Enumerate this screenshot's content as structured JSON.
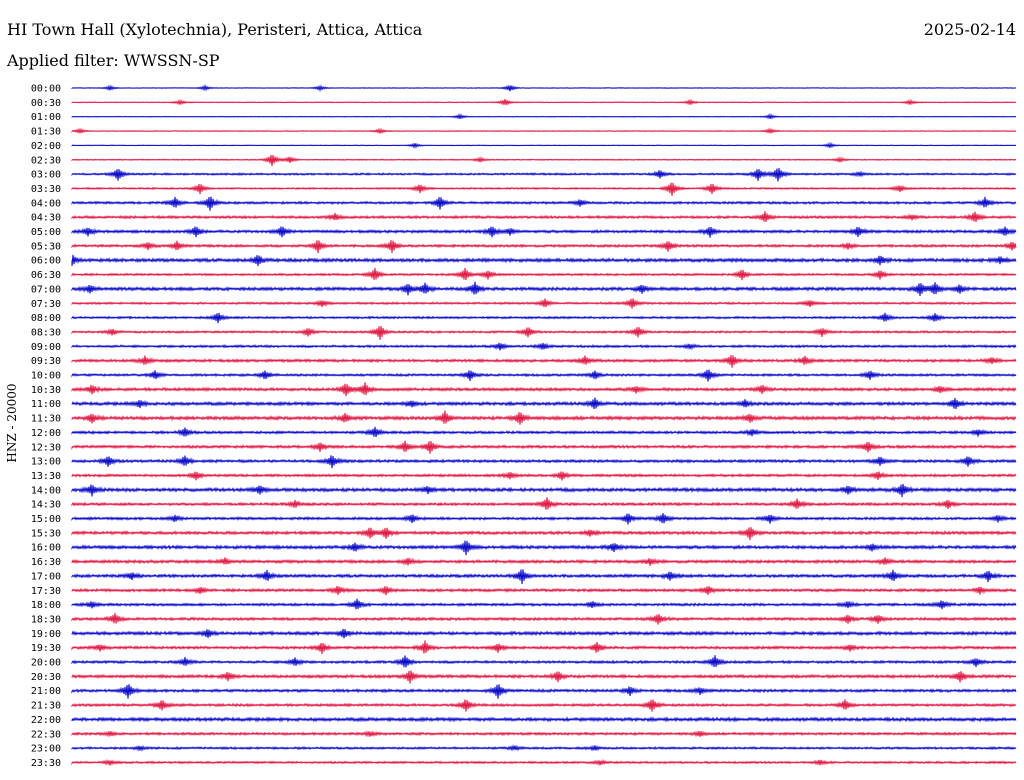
{
  "header": {
    "station": "HI Town Hall (Xylotechnia), Peristeri, Attica, Attica",
    "date": "2025-02-14",
    "filter": "Applied filter: WWSSN-SP"
  },
  "chart_data": {
    "type": "line",
    "title": "HI Town Hall (Xylotechnia), Peristeri, Attica, Attica",
    "ylabel": "HNZ - 20000",
    "row_labels": [
      "00:00",
      "00:30",
      "01:00",
      "01:30",
      "02:00",
      "02:30",
      "03:00",
      "03:30",
      "04:00",
      "04:30",
      "05:00",
      "05:30",
      "06:00",
      "06:30",
      "07:00",
      "07:30",
      "08:00",
      "08:30",
      "09:00",
      "09:30",
      "10:00",
      "10:30",
      "11:00",
      "11:30",
      "12:00",
      "12:30",
      "13:00",
      "13:30",
      "14:00",
      "14:30",
      "15:00",
      "15:30",
      "16:00",
      "16:30",
      "17:00",
      "17:30",
      "18:00",
      "18:30",
      "19:00",
      "19:30",
      "20:00",
      "20:30",
      "21:00",
      "21:30",
      "22:00",
      "22:30",
      "23:00",
      "23:30"
    ],
    "colors": [
      "#0000c8",
      "#e0103c"
    ],
    "noise": [
      0.3,
      0.4,
      0.3,
      0.4,
      0.3,
      0.5,
      0.9,
      0.8,
      1.1,
      1.2,
      1.3,
      1.2,
      1.6,
      1.0,
      1.5,
      1.0,
      1.0,
      1.0,
      1.1,
      1.3,
      1.1,
      1.4,
      1.5,
      1.6,
      1.2,
      1.3,
      1.3,
      1.2,
      1.6,
      1.3,
      1.2,
      1.4,
      1.5,
      1.4,
      1.4,
      1.3,
      1.2,
      1.3,
      1.5,
      1.3,
      1.2,
      1.4,
      1.3,
      1.2,
      1.6,
      1.2,
      1.0,
      1.0
    ],
    "bursts": [
      [
        [
          110,
          2
        ],
        [
          205,
          2
        ],
        [
          320,
          2
        ],
        [
          510,
          3
        ]
      ],
      [
        [
          180,
          2
        ],
        [
          505,
          3
        ],
        [
          690,
          2
        ],
        [
          910,
          2
        ]
      ],
      [
        [
          460,
          2
        ],
        [
          770,
          2
        ]
      ],
      [
        [
          80,
          2
        ],
        [
          380,
          2
        ],
        [
          770,
          2
        ]
      ],
      [
        [
          415,
          2
        ],
        [
          830,
          2
        ]
      ],
      [
        [
          272,
          6
        ],
        [
          290,
          3
        ],
        [
          480,
          2
        ],
        [
          840,
          2
        ]
      ],
      [
        [
          118,
          6
        ],
        [
          660,
          4
        ],
        [
          758,
          6
        ],
        [
          778,
          7
        ],
        [
          860,
          2
        ]
      ],
      [
        [
          200,
          5
        ],
        [
          420,
          4
        ],
        [
          672,
          7
        ],
        [
          712,
          5
        ],
        [
          900,
          3
        ]
      ],
      [
        [
          175,
          5
        ],
        [
          210,
          7
        ],
        [
          440,
          6
        ],
        [
          580,
          3
        ],
        [
          985,
          5
        ]
      ],
      [
        [
          335,
          3
        ],
        [
          765,
          5
        ],
        [
          912,
          2
        ],
        [
          975,
          5
        ]
      ],
      [
        [
          88,
          4
        ],
        [
          196,
          5
        ],
        [
          282,
          5
        ],
        [
          492,
          5
        ],
        [
          510,
          3
        ],
        [
          710,
          5
        ],
        [
          858,
          5
        ],
        [
          1005,
          4
        ]
      ],
      [
        [
          148,
          3
        ],
        [
          177,
          4
        ],
        [
          318,
          6
        ],
        [
          392,
          6
        ],
        [
          668,
          5
        ],
        [
          848,
          3
        ],
        [
          1012,
          4
        ]
      ],
      [
        [
          72,
          5
        ],
        [
          258,
          5
        ],
        [
          880,
          4
        ],
        [
          1000,
          3
        ]
      ],
      [
        [
          375,
          6
        ],
        [
          465,
          6
        ],
        [
          488,
          4
        ],
        [
          742,
          5
        ],
        [
          880,
          4
        ]
      ],
      [
        [
          90,
          4
        ],
        [
          408,
          5
        ],
        [
          425,
          5
        ],
        [
          475,
          6
        ],
        [
          642,
          4
        ],
        [
          920,
          6
        ],
        [
          935,
          6
        ],
        [
          960,
          4
        ]
      ],
      [
        [
          322,
          3
        ],
        [
          545,
          4
        ],
        [
          632,
          5
        ],
        [
          810,
          3
        ]
      ],
      [
        [
          218,
          5
        ],
        [
          885,
          4
        ],
        [
          935,
          4
        ]
      ],
      [
        [
          112,
          3
        ],
        [
          308,
          4
        ],
        [
          380,
          7
        ],
        [
          528,
          5
        ],
        [
          638,
          5
        ],
        [
          822,
          4
        ]
      ],
      [
        [
          500,
          3
        ],
        [
          543,
          3
        ],
        [
          690,
          2
        ]
      ],
      [
        [
          145,
          4
        ],
        [
          585,
          4
        ],
        [
          732,
          6
        ],
        [
          805,
          4
        ],
        [
          992,
          3
        ]
      ],
      [
        [
          155,
          4
        ],
        [
          265,
          4
        ],
        [
          470,
          5
        ],
        [
          595,
          4
        ],
        [
          708,
          6
        ],
        [
          870,
          4
        ]
      ],
      [
        [
          92,
          4
        ],
        [
          346,
          6
        ],
        [
          365,
          6
        ],
        [
          636,
          3
        ],
        [
          762,
          4
        ],
        [
          940,
          3
        ]
      ],
      [
        [
          140,
          3
        ],
        [
          412,
          3
        ],
        [
          595,
          5
        ],
        [
          745,
          3
        ],
        [
          955,
          5
        ]
      ],
      [
        [
          92,
          4
        ],
        [
          345,
          4
        ],
        [
          445,
          6
        ],
        [
          520,
          6
        ],
        [
          750,
          4
        ]
      ],
      [
        [
          185,
          4
        ],
        [
          375,
          5
        ],
        [
          752,
          3
        ],
        [
          978,
          3
        ]
      ],
      [
        [
          320,
          4
        ],
        [
          405,
          5
        ],
        [
          430,
          6
        ],
        [
          868,
          5
        ]
      ],
      [
        [
          108,
          5
        ],
        [
          185,
          5
        ],
        [
          332,
          6
        ],
        [
          880,
          4
        ],
        [
          968,
          5
        ]
      ],
      [
        [
          196,
          4
        ],
        [
          510,
          3
        ],
        [
          562,
          4
        ],
        [
          878,
          4
        ]
      ],
      [
        [
          92,
          5
        ],
        [
          260,
          4
        ],
        [
          428,
          3
        ],
        [
          848,
          4
        ],
        [
          902,
          6
        ]
      ],
      [
        [
          295,
          3
        ],
        [
          547,
          6
        ],
        [
          797,
          5
        ],
        [
          948,
          4
        ]
      ],
      [
        [
          175,
          3
        ],
        [
          412,
          4
        ],
        [
          628,
          5
        ],
        [
          663,
          5
        ],
        [
          770,
          4
        ],
        [
          998,
          3
        ]
      ],
      [
        [
          370,
          5
        ],
        [
          386,
          5
        ],
        [
          590,
          3
        ],
        [
          750,
          6
        ]
      ],
      [
        [
          355,
          4
        ],
        [
          466,
          7
        ],
        [
          614,
          4
        ],
        [
          872,
          3
        ]
      ],
      [
        [
          225,
          3
        ],
        [
          408,
          3
        ],
        [
          650,
          3
        ],
        [
          885,
          3
        ]
      ],
      [
        [
          132,
          3
        ],
        [
          267,
          5
        ],
        [
          522,
          7
        ],
        [
          670,
          4
        ],
        [
          893,
          5
        ],
        [
          988,
          5
        ]
      ],
      [
        [
          200,
          3
        ],
        [
          338,
          4
        ],
        [
          386,
          4
        ],
        [
          708,
          4
        ],
        [
          980,
          3
        ]
      ],
      [
        [
          92,
          3
        ],
        [
          357,
          5
        ],
        [
          592,
          3
        ],
        [
          848,
          3
        ],
        [
          942,
          4
        ]
      ],
      [
        [
          115,
          5
        ],
        [
          658,
          5
        ],
        [
          848,
          4
        ],
        [
          878,
          4
        ]
      ],
      [
        [
          208,
          4
        ],
        [
          344,
          4
        ]
      ],
      [
        [
          100,
          3
        ],
        [
          322,
          5
        ],
        [
          425,
          6
        ],
        [
          498,
          4
        ],
        [
          597,
          5
        ],
        [
          850,
          3
        ]
      ],
      [
        [
          185,
          4
        ],
        [
          295,
          4
        ],
        [
          405,
          6
        ],
        [
          715,
          6
        ],
        [
          976,
          4
        ]
      ],
      [
        [
          228,
          4
        ],
        [
          410,
          6
        ],
        [
          558,
          5
        ],
        [
          960,
          5
        ]
      ],
      [
        [
          128,
          7
        ],
        [
          498,
          7
        ],
        [
          630,
          4
        ],
        [
          700,
          3
        ]
      ],
      [
        [
          162,
          5
        ],
        [
          466,
          6
        ],
        [
          652,
          6
        ],
        [
          845,
          5
        ]
      ],
      [],
      [
        [
          110,
          2
        ],
        [
          370,
          2
        ],
        [
          700,
          2
        ]
      ],
      [
        [
          140,
          2
        ],
        [
          515,
          2
        ],
        [
          595,
          2
        ]
      ],
      [
        [
          110,
          2
        ],
        [
          600,
          2
        ],
        [
          820,
          2
        ]
      ]
    ]
  }
}
